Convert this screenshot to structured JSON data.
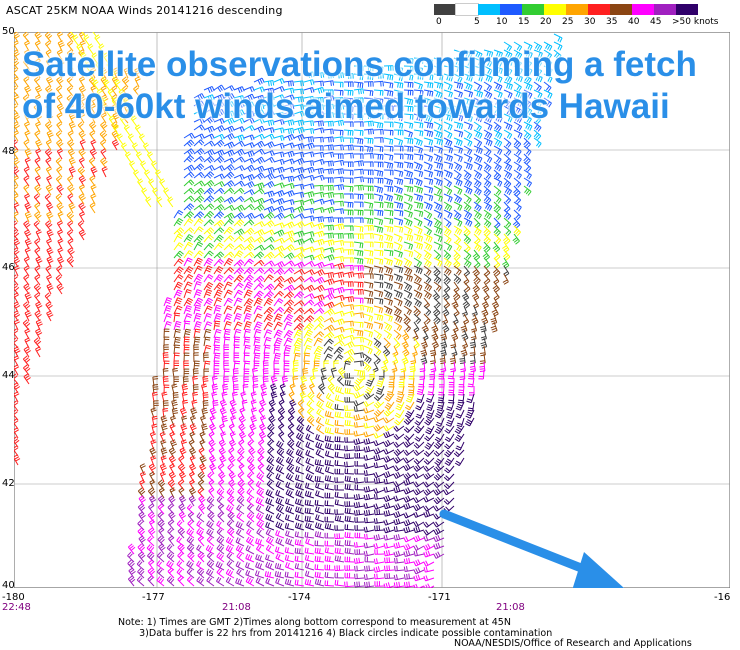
{
  "header": {
    "title": "ASCAT 25KM NOAA Winds 20141216 descending"
  },
  "legend": {
    "colors": [
      "#404040",
      "#ffffff",
      "#00bfff",
      "#1e5aff",
      "#32cd32",
      "#ffff00",
      "#ffa500",
      "#ff2020",
      "#8b4513",
      "#ff00ff",
      "#a020c0",
      "#30006a"
    ],
    "labels": [
      "0",
      "5",
      "10",
      "15",
      "20",
      "25",
      "30",
      "35",
      "40",
      "45",
      ">50 knots"
    ]
  },
  "overlay": {
    "line1": "Satellite observations confirming a fetch",
    "line2": "of 40-60kt winds aimed towards Hawaii",
    "color": "#2a8fe8"
  },
  "axes": {
    "lat_labels": [
      "50",
      "48",
      "46",
      "44",
      "42",
      "40"
    ],
    "lon_labels": [
      "-180",
      "-177",
      "-174",
      "-171",
      "-16"
    ],
    "time_labels": [
      "22:48",
      "21:08",
      "21:08"
    ]
  },
  "footer": {
    "notes": "Note: 1) Times are GMT 2)Times along bottom correspond to measurement at 45N\n       3)Data buffer is 22 hrs from 20141216 4) Black circles indicate possible contamination",
    "credit": "NOAA/NESDIS/Office of Research and Applications"
  }
}
